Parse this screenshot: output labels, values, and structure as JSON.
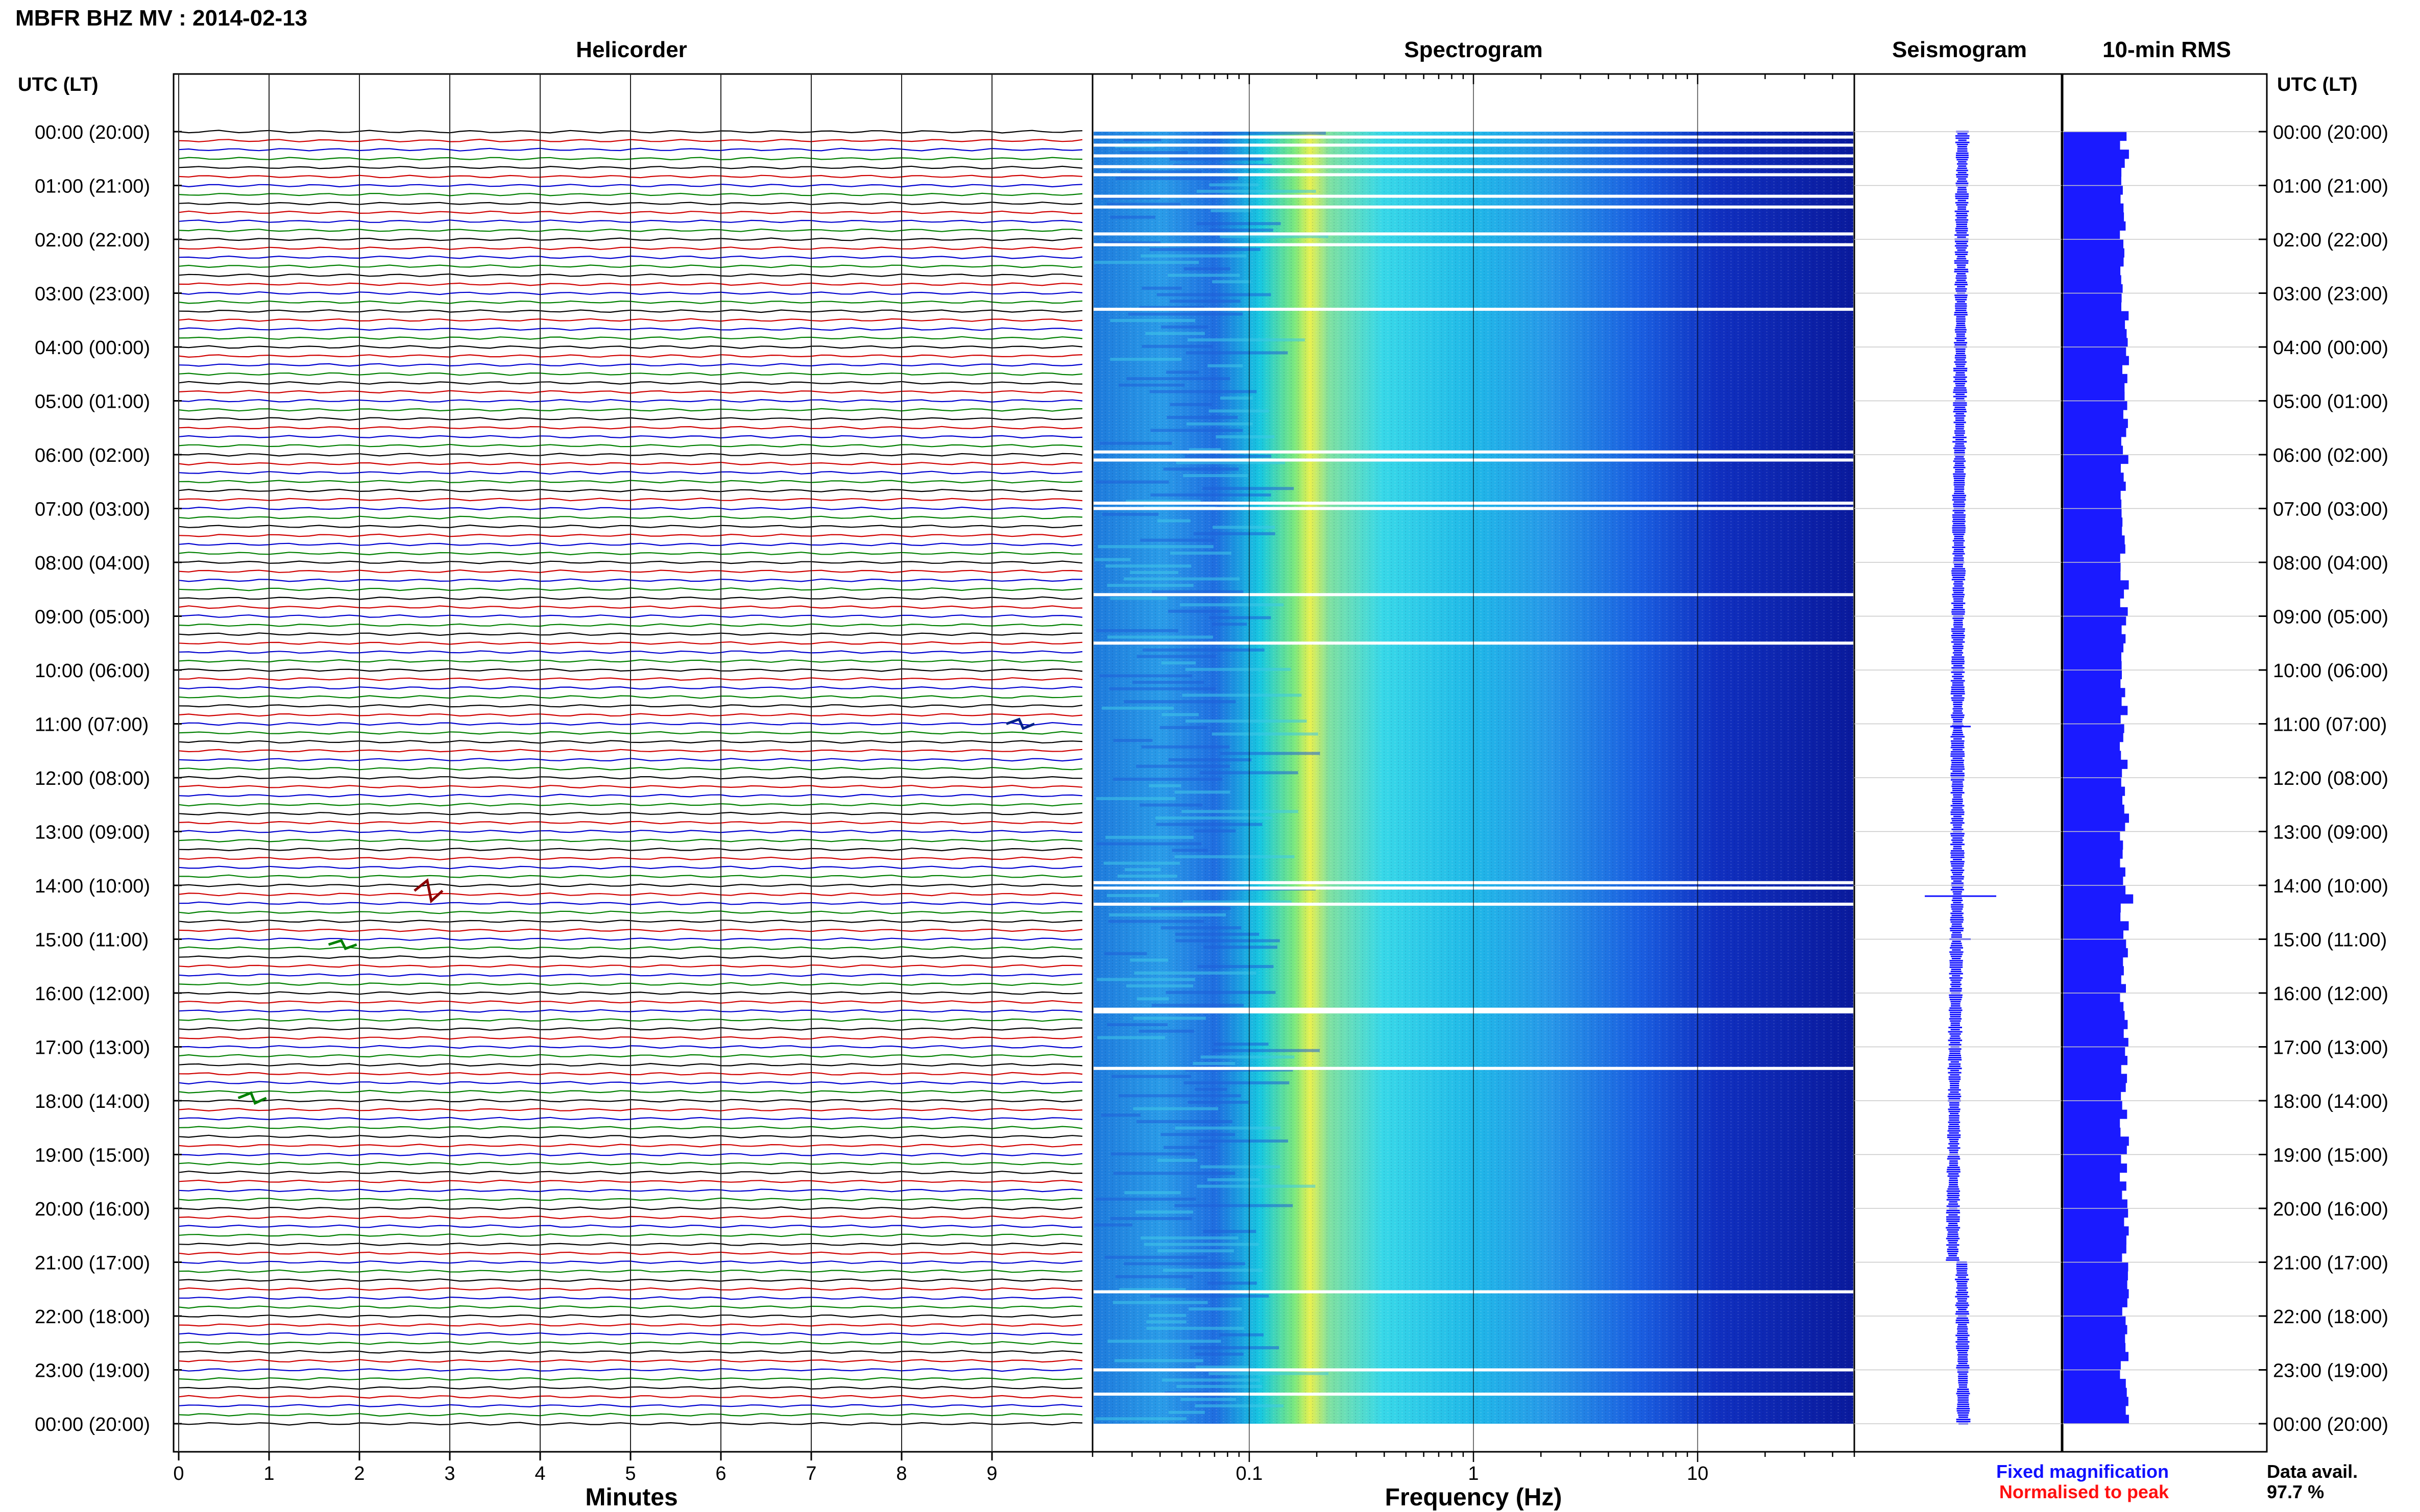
{
  "title": "MBFR BHZ MV : 2014-02-13",
  "panels": {
    "helicorder": "Helicorder",
    "spectrogram": "Spectrogram",
    "seismogram": "Seismogram",
    "rms": "10-min RMS"
  },
  "time_axis_label": "UTC (LT)",
  "time_labels": [
    "00:00 (20:00)",
    "01:00 (21:00)",
    "02:00 (22:00)",
    "03:00 (23:00)",
    "04:00 (00:00)",
    "05:00 (01:00)",
    "06:00 (02:00)",
    "07:00 (03:00)",
    "08:00 (04:00)",
    "09:00 (05:00)",
    "10:00 (06:00)",
    "11:00 (07:00)",
    "12:00 (08:00)",
    "13:00 (09:00)",
    "14:00 (10:00)",
    "15:00 (11:00)",
    "16:00 (12:00)",
    "17:00 (13:00)",
    "18:00 (14:00)",
    "19:00 (15:00)",
    "20:00 (16:00)",
    "21:00 (17:00)",
    "22:00 (18:00)",
    "23:00 (19:00)",
    "00:00 (20:00)"
  ],
  "x_axes": {
    "minutes": {
      "label": "Minutes",
      "ticks": [
        "0",
        "1",
        "2",
        "3",
        "4",
        "5",
        "6",
        "7",
        "8",
        "9"
      ]
    },
    "frequency": {
      "label": "Frequency (Hz)",
      "ticks": [
        "0.1",
        "1",
        "10"
      ]
    }
  },
  "legend": {
    "fixed": "Fixed magnification",
    "normalised": "Normalised to peak",
    "fixed_color": "#1010ff",
    "normalised_color": "#ff1010"
  },
  "data_avail": {
    "label": "Data avail.",
    "value": "97.7 %"
  },
  "trace_colors": [
    "#000000",
    "#d00000",
    "#0000d0",
    "#008000"
  ],
  "chart_data": [
    {
      "type": "line",
      "name": "helicorder",
      "xlabel": "Minutes",
      "xlim": [
        0,
        10
      ],
      "rows": 144,
      "row_minutes": 10,
      "ylabel": "UTC (LT)"
    },
    {
      "type": "heatmap",
      "name": "spectrogram",
      "xlabel": "Frequency (Hz)",
      "xscale": "log",
      "xlim": [
        0.02,
        50
      ],
      "dominant_band_hz": [
        0.2,
        0.25
      ],
      "gap_hours": [
        0.1,
        0.25,
        0.45,
        0.65,
        0.8,
        1.2,
        1.4,
        1.9,
        2.1,
        3.3,
        5.95,
        6.1,
        6.9,
        7.0,
        8.6,
        9.5,
        13.95,
        14.05,
        14.35,
        16.3,
        16.35,
        17.4,
        21.55,
        23.0,
        23.45
      ]
    },
    {
      "type": "line",
      "name": "seismogram",
      "events_hours": [
        11.05,
        14.2,
        15.0
      ]
    },
    {
      "type": "bar",
      "name": "rms",
      "bins": 144,
      "relative_level": 0.7
    }
  ]
}
